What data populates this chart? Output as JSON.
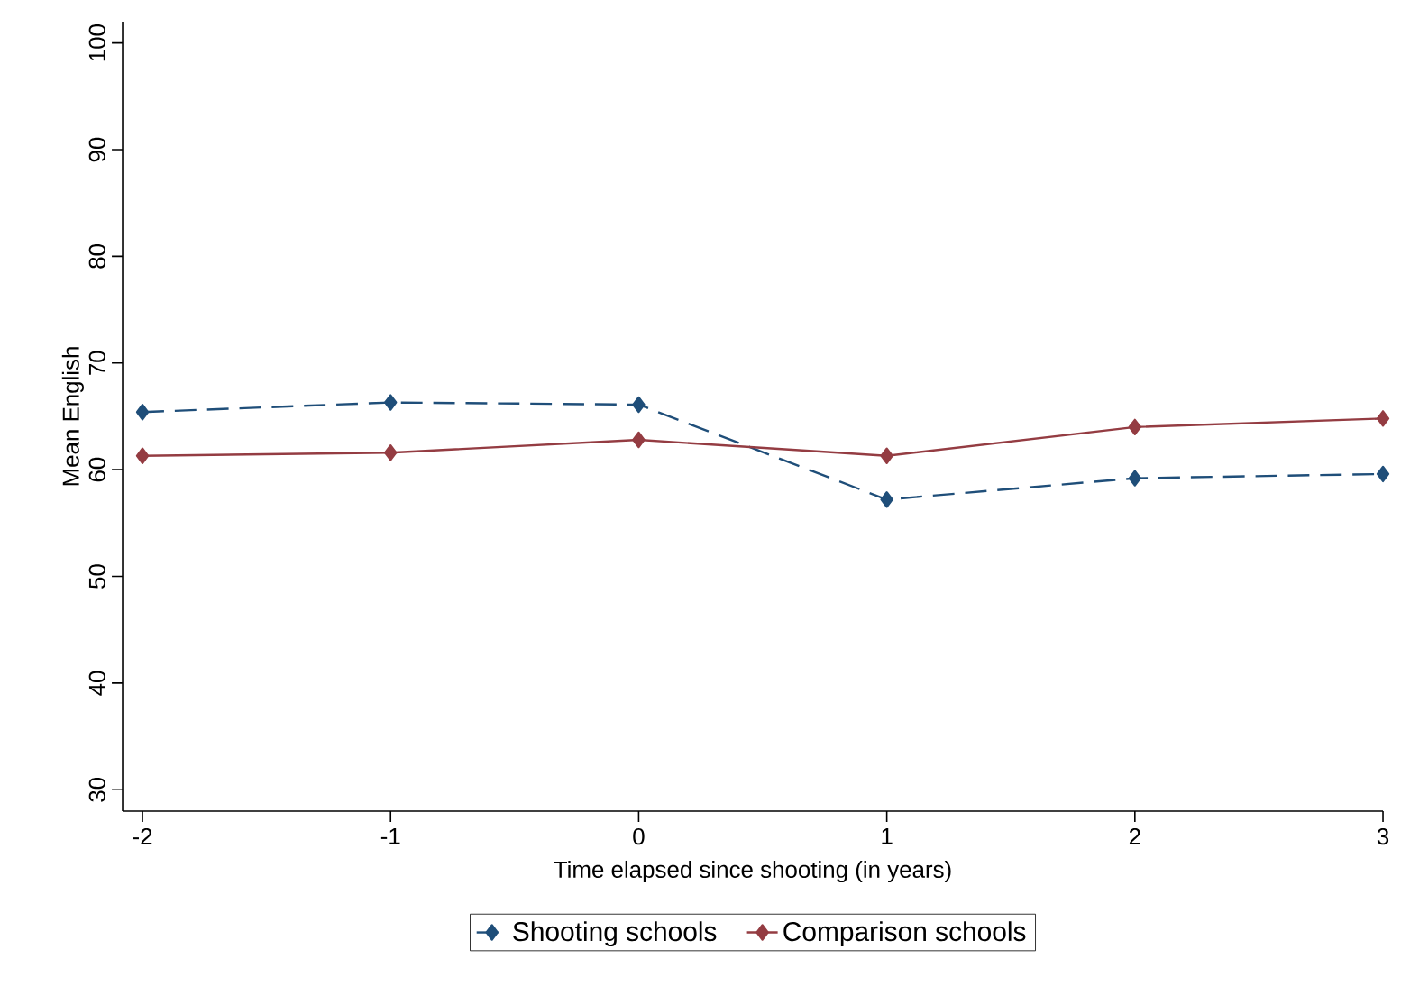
{
  "chart_data": {
    "type": "line",
    "xlabel": "Time elapsed since shooting (in years)",
    "ylabel": "Mean English",
    "x": [
      -2,
      -1,
      0,
      1,
      2,
      3
    ],
    "series": [
      {
        "name": "Shooting schools",
        "color": "#1f4e79",
        "line_style": "dashed",
        "values": [
          65.4,
          66.3,
          66.1,
          57.2,
          59.2,
          59.6
        ]
      },
      {
        "name": "Comparison schools",
        "color": "#943c42",
        "line_style": "solid",
        "values": [
          61.3,
          61.6,
          62.8,
          61.3,
          64.0,
          64.8
        ]
      }
    ],
    "xlim": [
      -2.08,
      3
    ],
    "ylim": [
      28,
      102
    ],
    "xticks": [
      -2,
      -1,
      0,
      1,
      2,
      3
    ],
    "yticks": [
      30,
      40,
      50,
      60,
      70,
      80,
      90,
      100
    ],
    "marker": "diamond",
    "grid": false,
    "legend": "bottom"
  }
}
